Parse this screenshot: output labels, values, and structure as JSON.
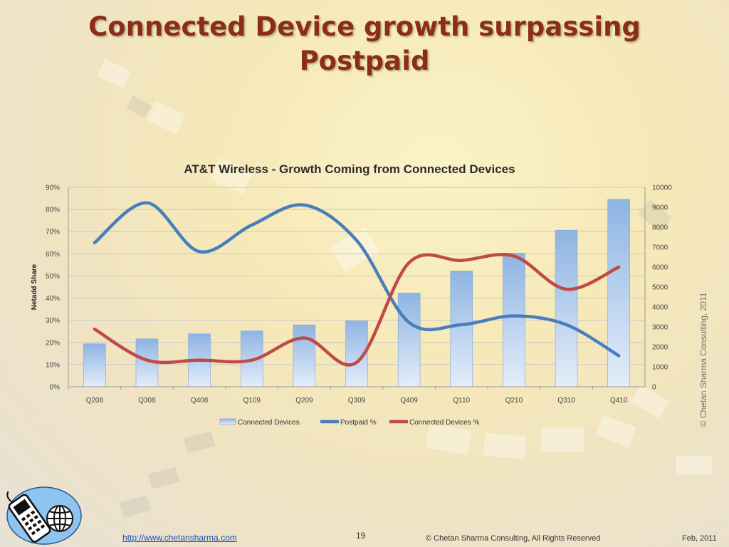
{
  "slide": {
    "title_line1": "Connected Device growth surpassing",
    "title_line2": "Postpaid"
  },
  "chart_data": {
    "type": "bar",
    "title": "AT&T Wireless - Growth Coming from Connected Devices",
    "categories": [
      "Q208",
      "Q308",
      "Q408",
      "Q109",
      "Q209",
      "Q309",
      "Q409",
      "Q110",
      "Q210",
      "Q310",
      "Q410"
    ],
    "ylabel": "Netadd Share",
    "ylim": [
      0,
      90
    ],
    "yticks": [
      "0%",
      "10%",
      "20%",
      "30%",
      "40%",
      "50%",
      "60%",
      "70%",
      "80%",
      "90%"
    ],
    "y2lim": [
      0,
      10000
    ],
    "y2ticks": [
      "0",
      "1000",
      "2000",
      "3000",
      "4000",
      "5000",
      "6000",
      "7000",
      "8000",
      "9000",
      "10000"
    ],
    "series": [
      {
        "name": "Connected Devices",
        "type": "bar",
        "axis": "right",
        "values": [
          2150,
          2400,
          2650,
          2800,
          3100,
          3300,
          4700,
          5800,
          6700,
          7850,
          9400
        ]
      },
      {
        "name": "Postpaid %",
        "type": "line",
        "axis": "left",
        "values": [
          65,
          83,
          61,
          73,
          82,
          66,
          29,
          28,
          32,
          28,
          14
        ]
      },
      {
        "name": "Connected Devices %",
        "type": "line",
        "axis": "left",
        "values": [
          26,
          12,
          12,
          12,
          22,
          11,
          56,
          57,
          59,
          44,
          54
        ]
      }
    ],
    "colors": {
      "bar_top": "#8eb4e3",
      "bar_bottom": "#e4edf9",
      "postpaid": "#4a7ebb",
      "connected": "#be4b48",
      "grid": "#c8c8c8"
    },
    "legend_position": "bottom",
    "grid": true
  },
  "watermark": "© Chetan Sharma Consulting, 2011",
  "footer": {
    "link": "http://www.chetansharma.com",
    "page_number": "19",
    "copyright": "© Chetan Sharma Consulting, All Rights Reserved",
    "date": "Feb, 2011"
  },
  "logo_icon": "phone-globe-icon"
}
